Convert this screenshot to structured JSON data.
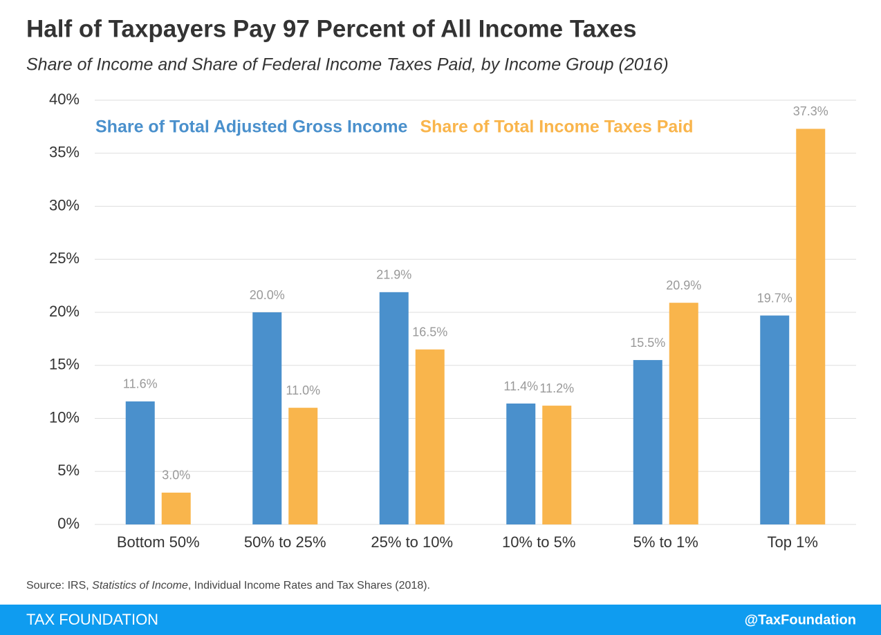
{
  "chart_data": {
    "type": "bar",
    "title": "Half of Taxpayers Pay 97 Percent of All Income Taxes",
    "subtitle": "Share of Income and Share of Federal Income Taxes Paid, by Income Group (2016)",
    "categories": [
      "Bottom 50%",
      "50% to 25%",
      "25% to 10%",
      "10% to 5%",
      "5% to 1%",
      "Top 1%"
    ],
    "series": [
      {
        "name": "Share of Total Adjusted Gross Income",
        "color": "#4a90cc",
        "values": [
          11.6,
          20.0,
          21.9,
          11.4,
          15.5,
          19.7
        ],
        "value_labels": [
          "11.6%",
          "20.0%",
          "21.9%",
          "11.4%",
          "15.5%",
          "19.7%"
        ]
      },
      {
        "name": "Share of Total Income Taxes Paid",
        "color": "#f9b54c",
        "values": [
          3.0,
          11.0,
          16.5,
          11.2,
          20.9,
          37.3
        ],
        "value_labels": [
          "3.0%",
          "11.0%",
          "16.5%",
          "11.2%",
          "20.9%",
          "37.3%"
        ]
      }
    ],
    "ylim": [
      0,
      40
    ],
    "yticks": [
      {
        "value": 0,
        "label": "0%"
      },
      {
        "value": 5,
        "label": "5%"
      },
      {
        "value": 10,
        "label": "10%"
      },
      {
        "value": 15,
        "label": "15%"
      },
      {
        "value": 20,
        "label": "20%"
      },
      {
        "value": 25,
        "label": "25%"
      },
      {
        "value": 30,
        "label": "30%"
      },
      {
        "value": 35,
        "label": "35%"
      },
      {
        "value": 40,
        "label": "40%"
      }
    ],
    "grid": true,
    "legend": "top-left",
    "source": [
      "Source: IRS, ",
      "Statistics of Income",
      ", Individual Income Rates and Tax Shares (2018)."
    ]
  },
  "footer": {
    "left": "TAX FOUNDATION",
    "right": "@TaxFoundation"
  }
}
